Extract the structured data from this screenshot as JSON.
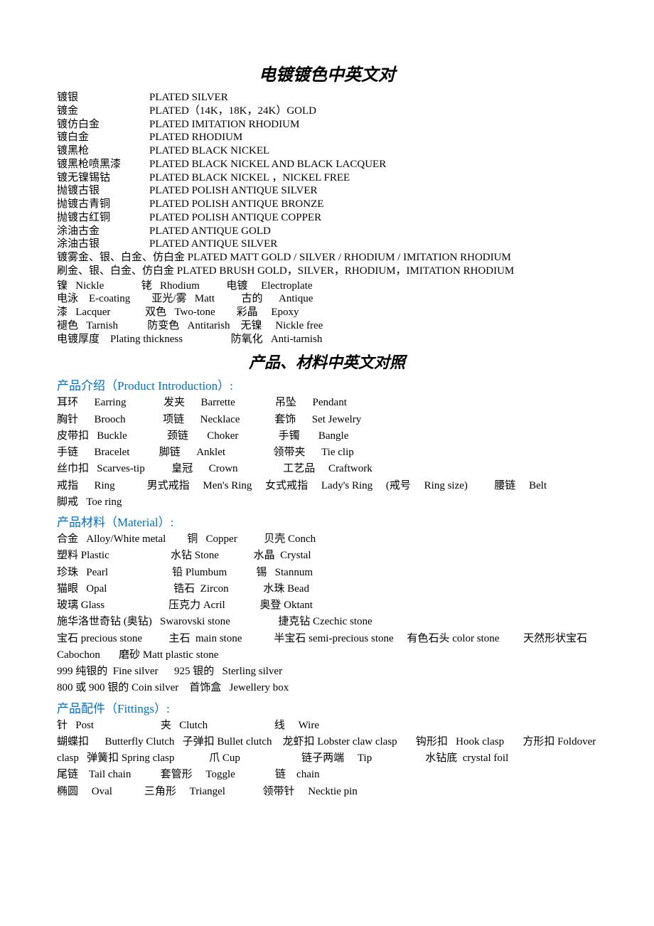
{
  "title1": "电镀镀色中英文对",
  "plating": [
    {
      "cn": "镀银",
      "en": "PLATED SILVER"
    },
    {
      "cn": "镀金",
      "en": "PLATED（14K，18K，24K）GOLD"
    },
    {
      "cn": "镀仿白金",
      "en": "PLATED IMITATION RHODIUM"
    },
    {
      "cn": "镀白金",
      "en": "PLATED RHODIUM"
    },
    {
      "cn": "镀黑枪",
      "en": "PLATED BLACK NICKEL"
    },
    {
      "cn": "镀黑枪喷黑漆",
      "en": "PLATED BLACK NICKEL AND BLACK LACQUER"
    },
    {
      "cn": "镀无镍锡钴",
      "en": "PLATED BLACK NICKEL ，NICKEL FREE"
    },
    {
      "cn": "抛镀古银",
      "en": "PLATED POLISH ANTIQUE SILVER"
    },
    {
      "cn": "抛镀古青铜",
      "en": "PLATED POLISH ANTIQUE BRONZE"
    },
    {
      "cn": "抛镀古红铜",
      "en": "PLATED POLISH ANTIQUE COPPER"
    },
    {
      "cn": "涂油古金",
      "en": "PLATED ANTIQUE GOLD"
    },
    {
      "cn": "涂油古银",
      "en": "PLATED ANTIQUE SILVER"
    }
  ],
  "plating_long": [
    "镀雾金、银、白金、仿白金       PLATED MATT GOLD / SILVER / RHODIUM / IMITATION RHODIUM",
    "刷金、银、白金、仿白金       PLATED BRUSH GOLD，SILVER，RHODIUM，IMITATION RHODIUM"
  ],
  "terms": [
    "镍   Nickle              铑   Rhodium          电镀     Electroplate",
    "电泳    E-coating        亚光/雾   Matt          古的      Antique",
    "漆   Lacquer             双色   Two-tone        彩晶     Epoxy",
    "褪色   Tarnish           防变色   Antitarish    无镍     Nickle free",
    "电镀厚度    Plating thickness                  防氧化   Anti-tarnish"
  ],
  "title2": "产品、材料中英文对照",
  "sections": {
    "product_intro": {
      "header_cn": "产品介绍（",
      "header_en": "Product Introduction",
      "header_suffix": "）:",
      "content": "耳环      Earring              发夹      Barrette               吊坠      Pendant\n胸针      Brooch              项链      Necklace             套饰      Set Jewelry\n皮带扣   Buckle               颈链       Choker               手镯       Bangle\n手链      Bracelet           脚链      Anklet                  领带夹      Tie clip\n丝巾扣   Scarves-tip          皇冠      Crown                 工艺品     Craftwork\n戒指      Ring            男式戒指     Men's Ring     女式戒指     Lady's Ring     (戒号     Ring size)          腰链     Belt               脚戒   Toe ring"
    },
    "material": {
      "header_cn": "产品材料（",
      "header_en": "Material",
      "header_suffix": "）:",
      "content": "合金   Alloy/White metal        铜   Copper          贝壳 Conch\n塑料 Plastic                       水钻 Stone             水晶  Crystal\n珍珠   Pearl                        铅 Plumbum           锡   Stannum\n猫眼   Opal                         锆石  Zircon             水珠 Bead\n玻璃 Glass                        压克力 Acril             奥登 Oktant\n施华洛世奇钻 (奥钻)   Swarovski stone                  捷克钻 Czechic stone\n宝石 precious stone          主石  main stone            半宝石 semi-precious stone     有色石头 color stone         天然形状宝石 Cabochon       磨砂 Matt plastic stone\n999 纯银的  Fine silver      925 银的   Sterling silver\n800 或 900 银的 Coin silver    首饰盒   Jewellery box"
    },
    "fittings": {
      "header_cn": "产品配件（",
      "header_en": "Fittings",
      "header_suffix": "）:",
      "content": "针   Post                         夹   Clutch                         线     Wire\n蝴蝶扣      Butterfly Clutch   子弹扣 Bullet clutch    龙虾扣 Lobster claw clasp       钩形扣   Hook clasp       方形扣 Foldover clasp   弹簧扣 Spring clasp             爪 Cup                       链子两端     Tip                    水钻底  crystal foil\n尾链    Tail chain           套管形     Toggle               链    chain\n椭圆     Oval            三角形     Triangel              领带针     Necktie pin"
    }
  },
  "colors": {
    "text": "#000000",
    "section_header": "#0070c0",
    "background": "#ffffff"
  }
}
